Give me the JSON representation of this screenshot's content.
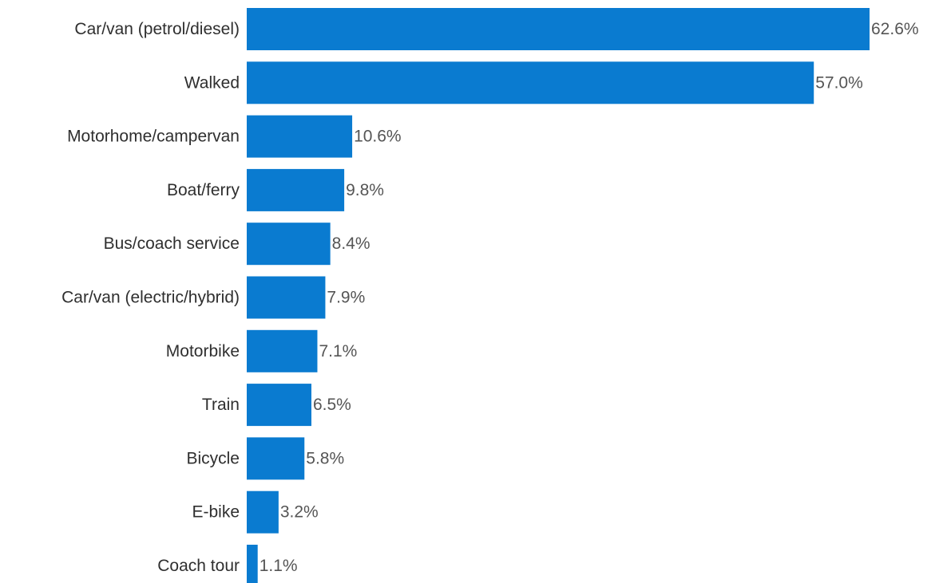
{
  "chart_data": {
    "type": "bar",
    "orientation": "horizontal",
    "categories": [
      "Car/van (petrol/diesel)",
      "Walked",
      "Motorhome/campervan",
      "Boat/ferry",
      "Bus/coach service",
      "Car/van (electric/hybrid)",
      "Motorbike",
      "Train",
      "Bicycle",
      "E-bike",
      "Coach tour"
    ],
    "values": [
      62.6,
      57.0,
      10.6,
      9.8,
      8.4,
      7.9,
      7.1,
      6.5,
      5.8,
      3.2,
      1.1
    ],
    "value_labels": [
      "62.6%",
      "57.0%",
      "10.6%",
      "9.8%",
      "8.4%",
      "7.9%",
      "7.1%",
      "6.5%",
      "5.8%",
      "3.2%",
      "1.1%"
    ],
    "title": "",
    "xlabel": "",
    "ylabel": "",
    "xlim": [
      0,
      62.6
    ],
    "grid": false,
    "legend": "none",
    "bar_color": "#0a7bd0"
  }
}
